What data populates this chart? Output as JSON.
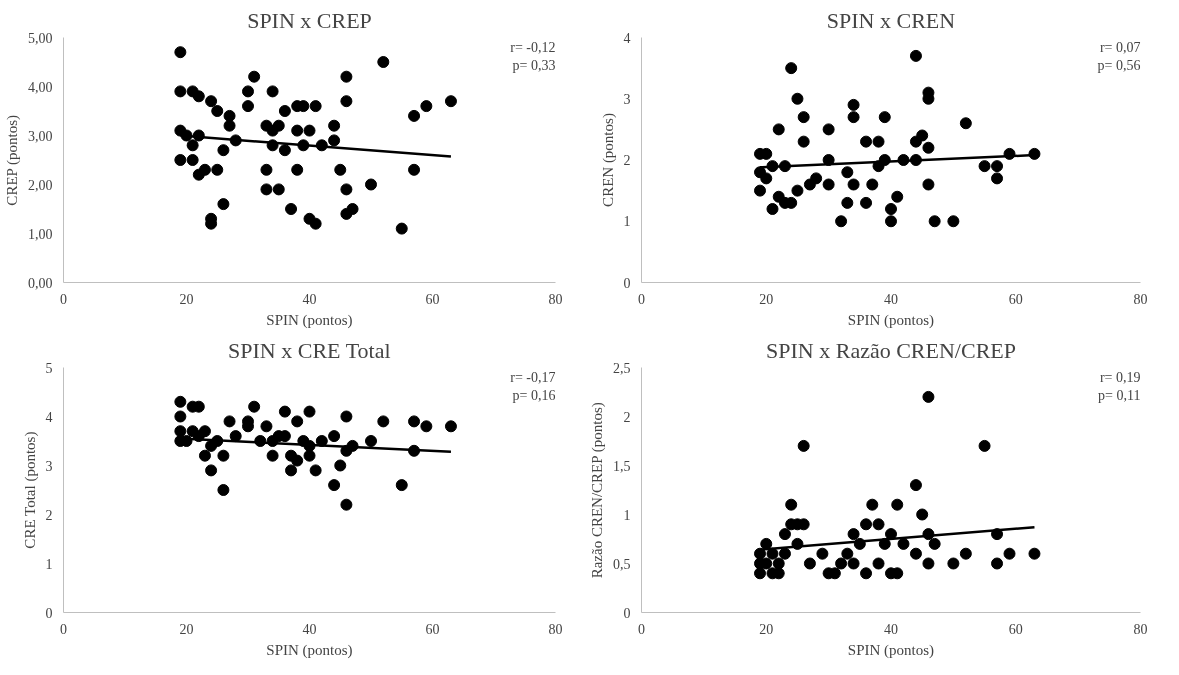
{
  "chart_data": [
    {
      "type": "scatter",
      "title": "SPIN x CREP",
      "xlabel": "SPIN (pontos)",
      "ylabel": "CREP (pontos)",
      "annotations": [
        "r= -0,12",
        "p= 0,33"
      ],
      "xlim": [
        0,
        80
      ],
      "xticks": [
        0,
        20,
        40,
        60,
        80
      ],
      "ylim": [
        0,
        5
      ],
      "yticks": [
        {
          "value": 0,
          "label": "0,00"
        },
        {
          "value": 1,
          "label": "1,00"
        },
        {
          "value": 2,
          "label": "2,00"
        },
        {
          "value": 3,
          "label": "3,00"
        },
        {
          "value": 4,
          "label": "4,00"
        },
        {
          "value": 5,
          "label": "5,00"
        }
      ],
      "grid": false,
      "marker": "circle",
      "series": [
        {
          "color": "#000000",
          "x": [
            19,
            19,
            19,
            19,
            20,
            21,
            21,
            21,
            22,
            22,
            22,
            23,
            24,
            24,
            24,
            25,
            25,
            26,
            26,
            27,
            27,
            28,
            30,
            30,
            31,
            33,
            33,
            33,
            34,
            34,
            34,
            35,
            35,
            36,
            36,
            37,
            38,
            38,
            38,
            39,
            39,
            40,
            40,
            41,
            41,
            42,
            44,
            44,
            45,
            46,
            46,
            46,
            46,
            47,
            50,
            52,
            55,
            57,
            57,
            59,
            63
          ],
          "values": [
            4.7,
            3.9,
            3.1,
            2.5,
            3.0,
            2.8,
            2.5,
            3.9,
            3.8,
            2.2,
            3.0,
            2.3,
            3.7,
            1.3,
            1.2,
            3.5,
            2.3,
            2.7,
            1.6,
            3.4,
            3.2,
            2.9,
            3.9,
            3.6,
            4.2,
            3.2,
            2.3,
            1.9,
            3.9,
            3.1,
            2.8,
            1.9,
            3.2,
            2.7,
            3.5,
            1.5,
            3.6,
            3.1,
            2.3,
            2.8,
            3.6,
            3.1,
            1.3,
            3.6,
            1.2,
            2.8,
            3.2,
            2.9,
            2.3,
            4.2,
            3.7,
            1.9,
            1.4,
            1.5,
            2.0,
            4.5,
            1.1,
            3.4,
            2.3,
            3.6,
            3.7
          ]
        },
        {
          "type": "line",
          "marker": "none",
          "color": "#000000",
          "x": [
            19,
            63
          ],
          "values": [
            3.0,
            2.57
          ]
        }
      ]
    },
    {
      "type": "scatter",
      "title": "SPIN x CREN",
      "xlabel": "SPIN (pontos)",
      "ylabel": "CREN (pontos)",
      "annotations": [
        "r= 0,07",
        "p= 0,56"
      ],
      "xlim": [
        0,
        80
      ],
      "xticks": [
        0,
        20,
        40,
        60,
        80
      ],
      "ylim": [
        0,
        4
      ],
      "yticks": [
        0,
        1,
        2,
        3,
        4
      ],
      "grid": false,
      "marker": "circle",
      "series": [
        {
          "color": "#000000",
          "x": [
            19,
            19,
            19,
            20,
            20,
            21,
            21,
            22,
            22,
            23,
            23,
            24,
            24,
            25,
            25,
            26,
            26,
            27,
            28,
            30,
            30,
            30,
            32,
            33,
            33,
            34,
            34,
            34,
            36,
            36,
            37,
            38,
            38,
            39,
            39,
            40,
            40,
            41,
            42,
            44,
            44,
            44,
            45,
            46,
            46,
            46,
            46,
            47,
            50,
            52,
            55,
            57,
            57,
            59,
            63
          ],
          "values": [
            2.1,
            1.8,
            1.5,
            2.1,
            1.7,
            1.2,
            1.9,
            2.5,
            1.4,
            1.9,
            1.3,
            1.3,
            3.5,
            3.0,
            1.5,
            2.7,
            2.3,
            1.6,
            1.7,
            2.5,
            2.0,
            1.6,
            1.0,
            1.8,
            1.3,
            2.9,
            2.7,
            1.6,
            2.3,
            1.3,
            1.6,
            2.3,
            1.9,
            2.7,
            2.0,
            1.2,
            1.0,
            1.4,
            2.0,
            3.7,
            2.3,
            2.0,
            2.4,
            3.1,
            3.0,
            2.2,
            1.6,
            1.0,
            1.0,
            2.6,
            1.9,
            1.7,
            1.9,
            2.1,
            2.1
          ]
        },
        {
          "type": "line",
          "marker": "none",
          "color": "#000000",
          "x": [
            19,
            63
          ],
          "values": [
            1.88,
            2.08
          ]
        }
      ]
    },
    {
      "type": "scatter",
      "title": "SPIN x CRE Total",
      "xlabel": "SPIN (pontos)",
      "ylabel": "CRE Total (pontos)",
      "annotations": [
        "r= -0,17",
        "p= 0,16"
      ],
      "xlim": [
        0,
        80
      ],
      "xticks": [
        0,
        20,
        40,
        60,
        80
      ],
      "ylim": [
        0,
        5
      ],
      "yticks": [
        0,
        1,
        2,
        3,
        4,
        5
      ],
      "grid": false,
      "marker": "circle",
      "series": [
        {
          "color": "#000000",
          "x": [
            19,
            19,
            19,
            19,
            20,
            21,
            21,
            22,
            22,
            23,
            23,
            24,
            24,
            25,
            26,
            26,
            27,
            28,
            30,
            30,
            31,
            32,
            33,
            34,
            34,
            35,
            36,
            36,
            37,
            37,
            38,
            38,
            39,
            40,
            40,
            40,
            41,
            42,
            44,
            44,
            45,
            46,
            46,
            46,
            47,
            50,
            52,
            55,
            57,
            57,
            59,
            63
          ],
          "values": [
            4.3,
            4.0,
            3.7,
            3.5,
            3.5,
            4.2,
            3.7,
            4.2,
            3.6,
            3.7,
            3.2,
            2.9,
            3.4,
            3.5,
            3.2,
            2.5,
            3.9,
            3.6,
            3.9,
            3.8,
            4.2,
            3.5,
            3.8,
            3.5,
            3.2,
            3.6,
            4.1,
            3.6,
            3.2,
            2.9,
            3.9,
            3.1,
            3.5,
            4.1,
            3.4,
            3.2,
            2.9,
            3.5,
            3.6,
            2.6,
            3.0,
            4.0,
            3.3,
            2.2,
            3.4,
            3.5,
            3.9,
            2.6,
            3.9,
            3.3,
            3.8,
            3.8
          ]
        },
        {
          "type": "line",
          "marker": "none",
          "color": "#000000",
          "x": [
            19,
            63
          ],
          "values": [
            3.55,
            3.28
          ]
        }
      ]
    },
    {
      "type": "scatter",
      "title": "SPIN x Razão CREN/CREP",
      "xlabel": "SPIN (pontos)",
      "ylabel": "Razão CREN/CREP (pontos)",
      "annotations": [
        "r= 0,19",
        "p= 0,11"
      ],
      "xlim": [
        0,
        80
      ],
      "xticks": [
        0,
        20,
        40,
        60,
        80
      ],
      "ylim": [
        0,
        2.5
      ],
      "yticks": [
        0,
        {
          "value": 0.5,
          "label": "0,5"
        },
        1,
        {
          "value": 1.5,
          "label": "1,5"
        },
        2,
        {
          "value": 2.5,
          "label": "2,5"
        }
      ],
      "grid": false,
      "marker": "circle",
      "series": [
        {
          "color": "#000000",
          "x": [
            19,
            19,
            19,
            20,
            20,
            21,
            21,
            22,
            22,
            23,
            23,
            24,
            24,
            25,
            25,
            26,
            26,
            27,
            29,
            30,
            31,
            32,
            33,
            34,
            34,
            35,
            36,
            36,
            37,
            38,
            38,
            39,
            40,
            40,
            41,
            41,
            42,
            44,
            44,
            45,
            46,
            46,
            46,
            47,
            50,
            52,
            55,
            57,
            57,
            59,
            63
          ],
          "values": [
            0.6,
            0.5,
            0.4,
            0.7,
            0.5,
            0.6,
            0.4,
            0.5,
            0.4,
            0.8,
            0.6,
            1.1,
            0.9,
            0.9,
            0.7,
            1.7,
            0.9,
            0.5,
            0.6,
            0.4,
            0.4,
            0.5,
            0.6,
            0.8,
            0.5,
            0.7,
            0.9,
            0.4,
            1.1,
            0.9,
            0.5,
            0.7,
            0.8,
            0.4,
            1.1,
            0.4,
            0.7,
            1.3,
            0.6,
            1.0,
            2.2,
            0.8,
            0.5,
            0.7,
            0.5,
            0.6,
            1.7,
            0.8,
            0.5,
            0.6,
            0.6
          ]
        },
        {
          "type": "line",
          "marker": "none",
          "color": "#000000",
          "x": [
            19,
            63
          ],
          "values": [
            0.64,
            0.87
          ]
        }
      ]
    }
  ]
}
